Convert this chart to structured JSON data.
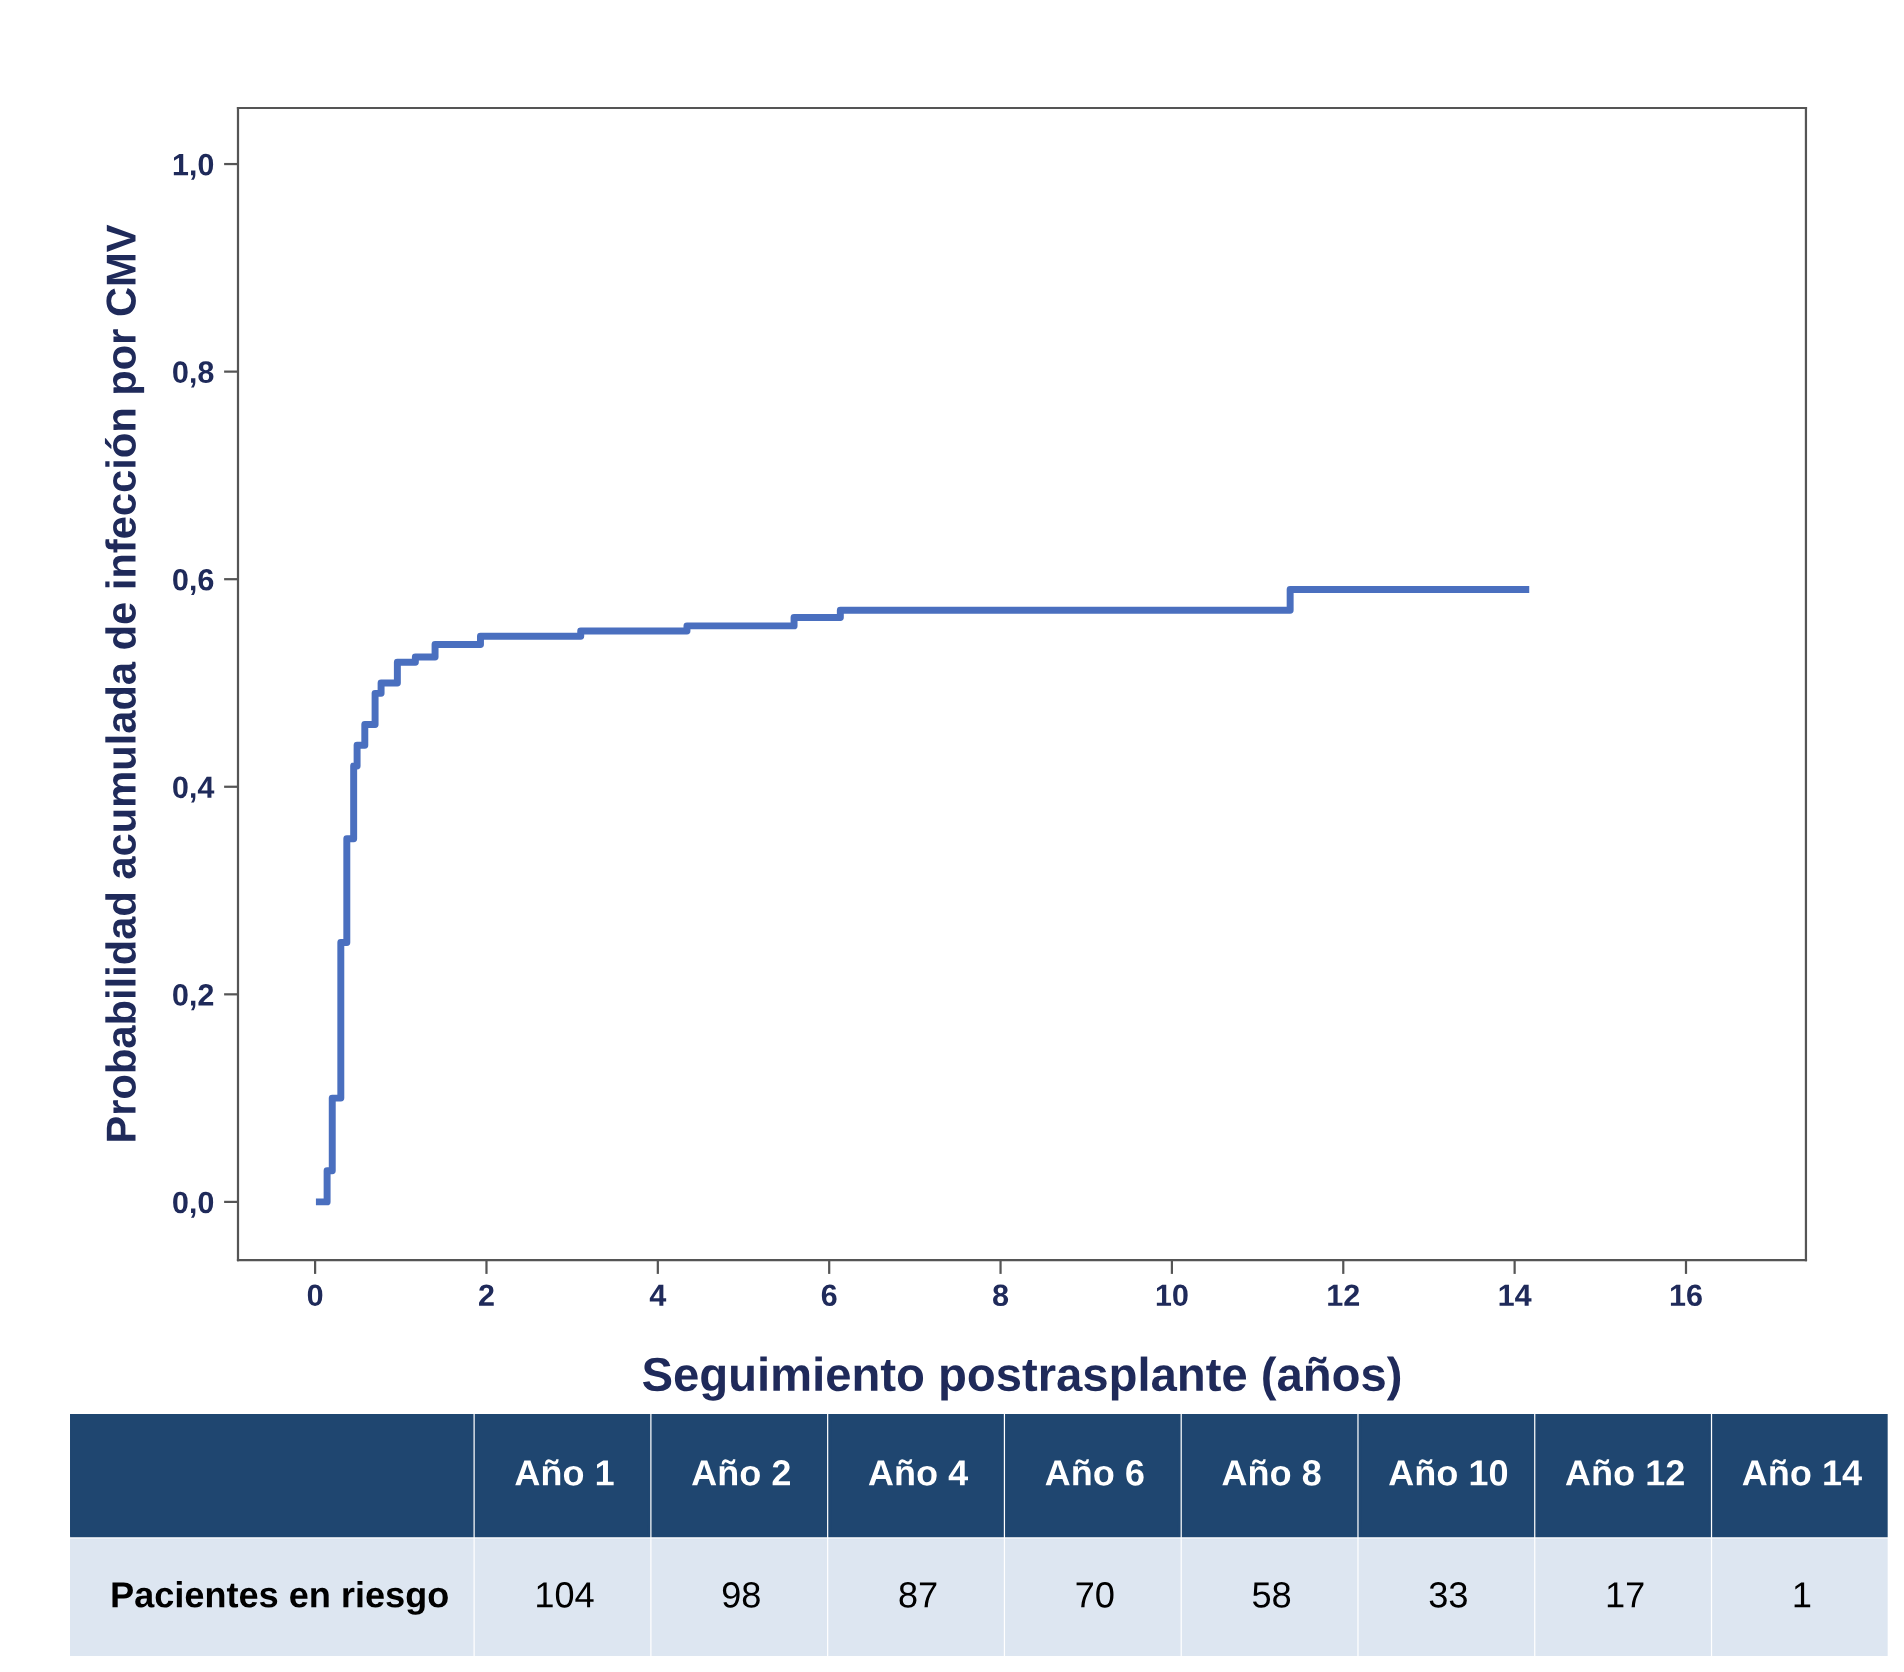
{
  "chart_data": [
    {
      "type": "step",
      "xlabel": "Seguimiento postrasplante (años)",
      "ylabel": "Probabilidad acumulada de infección por CMV",
      "x": [
        0.05,
        0.14,
        0.2,
        0.3,
        0.37,
        0.45,
        0.49,
        0.58,
        0.7,
        0.77,
        0.96,
        1.17,
        1.4,
        1.93,
        3.1,
        4.34,
        5.59,
        6.13,
        11.38,
        14.13
      ],
      "series": [
        {
          "color": "#4a6fbf",
          "values": [
            0,
            0.03,
            0.1,
            0.25,
            0.35,
            0.42,
            0.44,
            0.46,
            0.49,
            0.5,
            0.52,
            0.525,
            0.537,
            0.545,
            0.55,
            0.555,
            0.563,
            0.57,
            0.59,
            0.59
          ]
        }
      ],
      "xlim": [
        -0.9,
        17.4
      ],
      "ylim": [
        -0.056,
        1.054
      ],
      "xticks": [
        0,
        2,
        4,
        6,
        8,
        10,
        12,
        14,
        16
      ],
      "yticks": [
        {
          "value": 0,
          "label": "0,0"
        },
        {
          "value": 0.2,
          "label": "0,2"
        },
        {
          "value": 0.4,
          "label": "0,4"
        },
        {
          "value": 0.6,
          "label": "0,6"
        },
        {
          "value": 0.8,
          "label": "0,8"
        },
        {
          "value": 1.0,
          "label": "1,0"
        }
      ],
      "grid": false,
      "legend": false,
      "line_style": "solid"
    },
    {
      "type": "other",
      "ylabel": "Pacientes en riesgo",
      "categories": [
        "Año 1",
        "Año 2",
        "Año 4",
        "Año 6",
        "Año 8",
        "Año 10",
        "Año 12",
        "Año 14"
      ],
      "values": [
        104,
        98,
        87,
        70,
        58,
        33,
        17,
        1
      ],
      "data_labels": true
    }
  ]
}
